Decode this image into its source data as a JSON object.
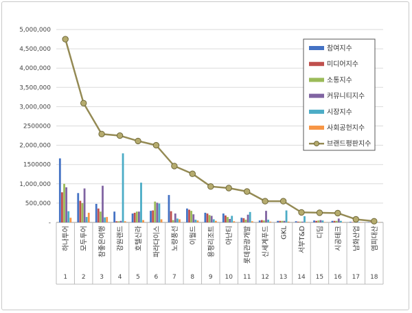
{
  "chart_data": {
    "type": "bar",
    "y_ticks": [
      "5,000,000",
      "4,500,000",
      "4,000,000",
      "3,500,000",
      "3,000,000",
      "2500000",
      "2,000,000",
      "1500000",
      "1,000,000",
      "500,000",
      "-"
    ],
    "ylim": [
      0,
      5000000
    ],
    "categories": [
      "하나투어",
      "모두투어",
      "참좋은여행",
      "강원랜드",
      "호텔신라",
      "파라다이스",
      "노랑풍선",
      "이월드",
      "용평리조트",
      "아난티",
      "롯데관광개발",
      "신세계푸드",
      "GKL",
      "서부T&D",
      "디딤",
      "시공테크",
      "남화산업",
      "엠피대산"
    ],
    "ranks": [
      "1",
      "2",
      "3",
      "4",
      "5",
      "6",
      "7",
      "8",
      "9",
      "10",
      "11",
      "12",
      "13",
      "14",
      "15",
      "16",
      "17",
      "18"
    ],
    "series": [
      {
        "name": "참여지수",
        "color": "#4472c4",
        "values": [
          1660000,
          760000,
          480000,
          280000,
          230000,
          300000,
          710000,
          360000,
          250000,
          230000,
          120000,
          50000,
          40000,
          30000,
          50000,
          40000,
          15000,
          10000
        ]
      },
      {
        "name": "미디어지수",
        "color": "#c0504d",
        "values": [
          780000,
          560000,
          360000,
          30000,
          250000,
          310000,
          290000,
          330000,
          230000,
          180000,
          110000,
          60000,
          40000,
          20000,
          40000,
          40000,
          10000,
          10000
        ]
      },
      {
        "name": "소통지수",
        "color": "#9bbb59",
        "values": [
          1000000,
          500000,
          280000,
          30000,
          280000,
          540000,
          60000,
          300000,
          190000,
          140000,
          70000,
          50000,
          40000,
          20000,
          50000,
          40000,
          10000,
          10000
        ]
      },
      {
        "name": "커뮤니티지수",
        "color": "#8064a2",
        "values": [
          910000,
          880000,
          950000,
          40000,
          280000,
          510000,
          230000,
          210000,
          170000,
          90000,
          200000,
          300000,
          40000,
          20000,
          60000,
          100000,
          15000,
          10000
        ]
      },
      {
        "name": "시장지수",
        "color": "#4bacc6",
        "values": [
          290000,
          140000,
          130000,
          1790000,
          1030000,
          490000,
          100000,
          70000,
          80000,
          170000,
          270000,
          70000,
          310000,
          160000,
          50000,
          40000,
          10000,
          10000
        ]
      },
      {
        "name": "사회공헌지수",
        "color": "#f79646",
        "values": [
          120000,
          250000,
          140000,
          30000,
          60000,
          80000,
          80000,
          50000,
          40000,
          30000,
          30000,
          20000,
          20000,
          10000,
          10000,
          10000,
          5000,
          5000
        ]
      }
    ],
    "line_series": {
      "name": "브랜드평판지수",
      "color": "#948a54",
      "values": [
        4750000,
        3090000,
        2290000,
        2250000,
        2110000,
        2000000,
        1460000,
        1260000,
        930000,
        890000,
        800000,
        550000,
        550000,
        260000,
        250000,
        240000,
        80000,
        30000
      ]
    },
    "legend_position": "right"
  }
}
